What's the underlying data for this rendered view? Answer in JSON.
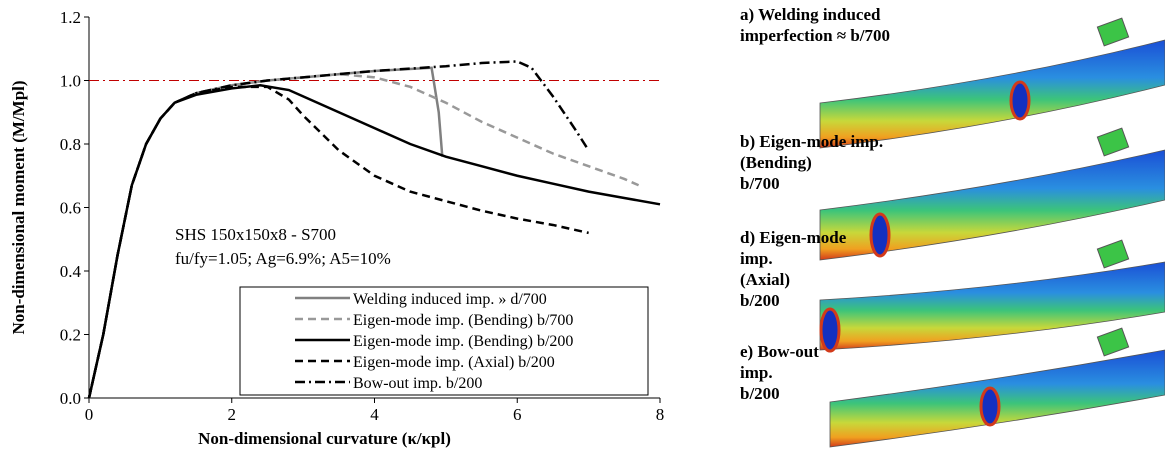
{
  "chart_data": {
    "type": "line",
    "xlabel": "Non-dimensional curvature (κ/κpl)",
    "ylabel": "Non-dimensional moment (M/Mpl)",
    "annotations": [
      "SHS 150x150x8 - S700",
      "fu/fy=1.05; Ag=6.9%; A5=10%"
    ],
    "xlim": [
      0,
      8
    ],
    "xticks": [
      0,
      2,
      4,
      6,
      8
    ],
    "ylim": [
      0,
      1.2
    ],
    "yticks": [
      {
        "value": 0,
        "label": "0.0"
      },
      0.2,
      0.4,
      0.6,
      0.8,
      {
        "value": 1,
        "label": "1.0"
      },
      1.2
    ],
    "reference_line": {
      "value": 1,
      "color": "#c00000",
      "dash": "dashdot"
    },
    "legend": "lower right",
    "series": [
      {
        "name": "Welding induced imp. » d/700",
        "color": "#808080",
        "dash": "solid",
        "x": [
          0,
          0.2,
          0.4,
          0.6,
          0.8,
          1.0,
          1.2,
          1.5,
          2.0,
          2.5,
          3.0,
          4.0,
          4.8,
          4.9,
          4.95
        ],
        "values": [
          0,
          0.2,
          0.45,
          0.67,
          0.8,
          0.88,
          0.93,
          0.96,
          0.985,
          1.0,
          1.01,
          1.03,
          1.04,
          0.9,
          0.76
        ]
      },
      {
        "name": "Eigen-mode imp. (Bending) b/700",
        "color": "#999999",
        "dash": "dashed",
        "x": [
          0,
          0.2,
          0.4,
          0.6,
          0.8,
          1.0,
          1.2,
          1.5,
          2.0,
          2.5,
          3.0,
          3.5,
          4.0,
          4.5,
          5.0,
          5.5,
          6.0,
          6.5,
          7.0,
          7.5,
          7.7
        ],
        "values": [
          0,
          0.2,
          0.45,
          0.67,
          0.8,
          0.88,
          0.93,
          0.96,
          0.985,
          1.0,
          1.01,
          1.02,
          1.01,
          0.98,
          0.93,
          0.87,
          0.82,
          0.77,
          0.73,
          0.69,
          0.67
        ]
      },
      {
        "name": "Eigen-mode imp. (Bending) b/200",
        "color": "#000000",
        "dash": "solid",
        "x": [
          0,
          0.2,
          0.4,
          0.6,
          0.8,
          1.0,
          1.2,
          1.5,
          2.0,
          2.4,
          2.8,
          3.0,
          3.5,
          4.0,
          4.5,
          5.0,
          5.5,
          6.0,
          6.5,
          7.0,
          7.5,
          8.0
        ],
        "values": [
          0,
          0.2,
          0.45,
          0.67,
          0.8,
          0.88,
          0.93,
          0.955,
          0.975,
          0.985,
          0.97,
          0.95,
          0.9,
          0.85,
          0.8,
          0.76,
          0.73,
          0.7,
          0.675,
          0.65,
          0.63,
          0.61
        ]
      },
      {
        "name": "Eigen-mode imp. (Axial) b/200",
        "color": "#000000",
        "dash": "dashed",
        "x": [
          0,
          0.2,
          0.4,
          0.6,
          0.8,
          1.0,
          1.2,
          1.5,
          2.0,
          2.5,
          2.8,
          3.0,
          3.5,
          4.0,
          4.5,
          5.0,
          5.5,
          6.0,
          6.5,
          7.0
        ],
        "values": [
          0,
          0.2,
          0.45,
          0.67,
          0.8,
          0.88,
          0.93,
          0.96,
          0.98,
          0.98,
          0.94,
          0.89,
          0.78,
          0.7,
          0.65,
          0.62,
          0.59,
          0.565,
          0.545,
          0.52
        ]
      },
      {
        "name": "Bow-out imp. b/200",
        "color": "#000000",
        "dash": "dashdot",
        "x": [
          0,
          0.2,
          0.4,
          0.6,
          0.8,
          1.0,
          1.2,
          1.5,
          2.0,
          2.5,
          3.0,
          4.0,
          5.0,
          5.5,
          6.0,
          6.2,
          6.5,
          6.8,
          7.0
        ],
        "values": [
          0,
          0.2,
          0.45,
          0.67,
          0.8,
          0.88,
          0.93,
          0.96,
          0.985,
          1.0,
          1.01,
          1.03,
          1.045,
          1.055,
          1.06,
          1.04,
          0.95,
          0.85,
          0.78
        ]
      }
    ]
  },
  "panels": [
    {
      "lines": [
        "a) Welding induced",
        "imperfection ≈ b/700"
      ]
    },
    {
      "lines": [
        "b) Eigen-mode imp.",
        "(Bending)",
        "b/700"
      ]
    },
    {
      "lines": [
        "d) Eigen-mode",
        "imp.",
        "(Axial)",
        "b/200"
      ]
    },
    {
      "lines": [
        "e) Bow-out",
        "imp.",
        "b/200"
      ]
    }
  ]
}
